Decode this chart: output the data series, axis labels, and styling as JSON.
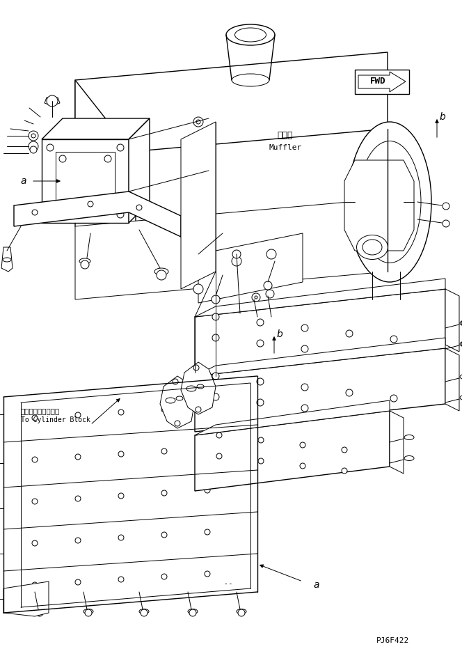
{
  "bg_color": "#ffffff",
  "lc": "#000000",
  "fig_width": 6.64,
  "fig_height": 9.42,
  "dpi": 100,
  "label_fwd": "FWD",
  "label_muffler_jp": "マフラ",
  "label_muffler_en": "Muffler",
  "label_cylinder_jp": "シリンダブロックへ",
  "label_cylinder_en": "To Cylinder Block",
  "label_a": "a",
  "label_b": "b",
  "part_number": "PJ6F422"
}
